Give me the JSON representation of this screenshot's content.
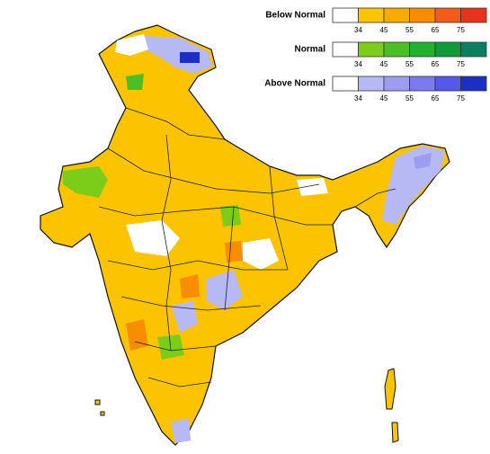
{
  "legend": [
    {
      "label": "Below Normal",
      "colors": [
        "#ffffff",
        "#fdc400",
        "#f9ab00",
        "#f98d00",
        "#f45a1a",
        "#e8321e"
      ],
      "ticks": [
        34,
        45,
        55,
        65,
        75
      ]
    },
    {
      "label": "Normal",
      "colors": [
        "#ffffff",
        "#7ccc1a",
        "#4cbf26",
        "#22b02e",
        "#0f9b3a",
        "#0b8060"
      ],
      "ticks": [
        34,
        45,
        55,
        65,
        75
      ]
    },
    {
      "label": "Above Normal",
      "colors": [
        "#ffffff",
        "#b7b9f5",
        "#9c9cf0",
        "#7b7aee",
        "#5558ec",
        "#1c2fc4"
      ],
      "ticks": [
        34,
        45,
        55,
        65,
        75
      ]
    }
  ]
}
